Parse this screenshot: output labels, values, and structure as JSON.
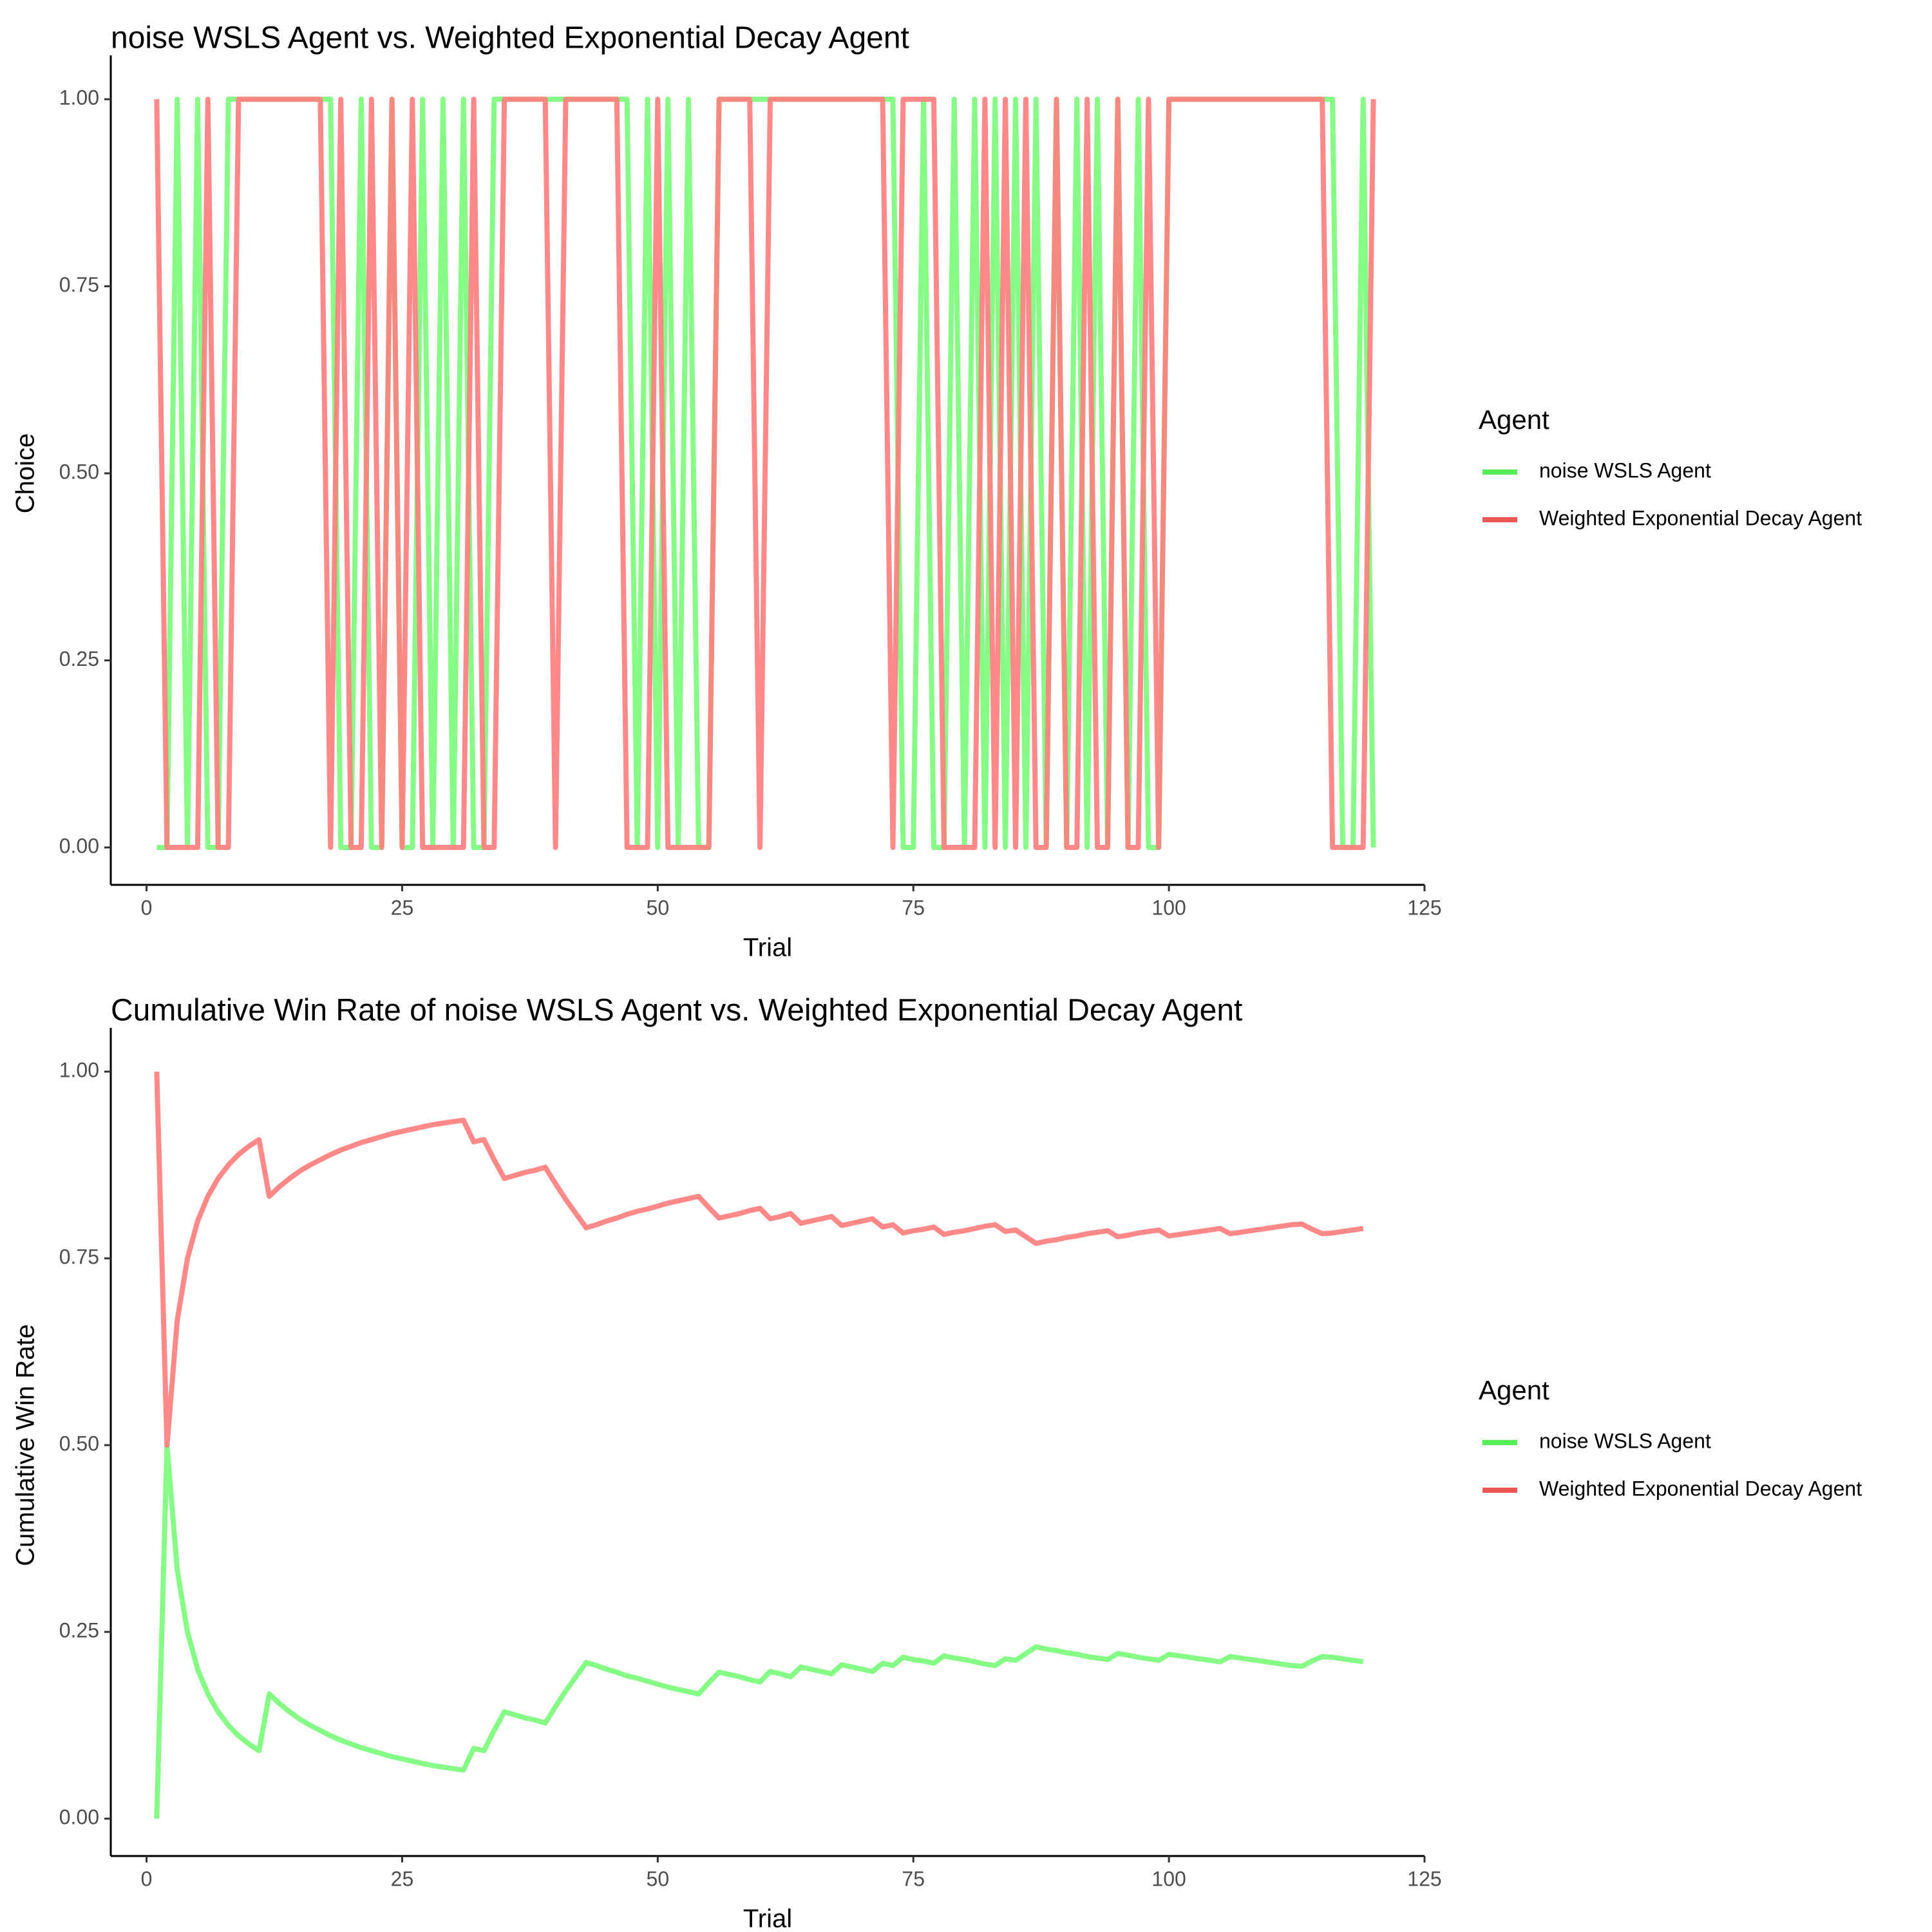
{
  "colors": {
    "wsls": "#7CFC7C",
    "decay": "#FF7F7F",
    "wsls_key": "#55EE55",
    "decay_key": "#EE5555"
  },
  "chart_data": [
    {
      "type": "line",
      "title": "noise WSLS Agent vs. Weighted Exponential Decay Agent",
      "xlabel": "Trial",
      "ylabel": "Choice",
      "xlim": [
        -3.5,
        125
      ],
      "ylim": [
        -0.05,
        1.05
      ],
      "x_ticks": [
        0,
        25,
        50,
        75,
        100,
        125
      ],
      "y_ticks": [
        0,
        0.25,
        0.5,
        0.75,
        1
      ],
      "x_tick_labels": [
        "0",
        "25",
        "50",
        "75",
        "100",
        "125"
      ],
      "y_tick_labels": [
        "0.00",
        "0.25",
        "0.50",
        "0.75",
        "1.00"
      ],
      "legend": {
        "title": "Agent",
        "position": "right"
      },
      "series": [
        {
          "name": "noise WSLS Agent",
          "color": "#7CFC7C",
          "x": [
            1,
            2,
            3,
            4,
            5,
            6,
            7,
            8,
            9,
            10,
            11,
            12,
            13,
            14,
            15,
            16,
            17,
            18,
            19,
            20,
            21,
            22,
            23,
            24,
            25,
            26,
            27,
            28,
            29,
            30,
            31,
            32,
            33,
            34,
            35,
            36,
            37,
            38,
            39,
            40,
            41,
            42,
            43,
            44,
            45,
            46,
            47,
            48,
            49,
            50,
            51,
            52,
            53,
            54,
            55,
            56,
            57,
            58,
            59,
            60,
            61,
            62,
            63,
            64,
            65,
            66,
            67,
            68,
            69,
            70,
            71,
            72,
            73,
            74,
            75,
            76,
            77,
            78,
            79,
            80,
            81,
            82,
            83,
            84,
            85,
            86,
            87,
            88,
            89,
            90,
            91,
            92,
            93,
            94,
            95,
            96,
            97,
            98,
            99,
            100,
            101,
            102,
            103,
            104,
            105,
            106,
            107,
            108,
            109,
            110,
            111,
            112,
            113,
            114,
            115,
            116,
            117,
            118,
            119,
            120
          ],
          "y": [
            0,
            0,
            1,
            0,
            1,
            0,
            0,
            1,
            1,
            1,
            1,
            1,
            1,
            1,
            1,
            1,
            1,
            1,
            0,
            0,
            1,
            0,
            0,
            1,
            0,
            0,
            1,
            0,
            1,
            0,
            1,
            0,
            0,
            1,
            1,
            1,
            1,
            1,
            1,
            1,
            1,
            1,
            1,
            1,
            1,
            1,
            1,
            0,
            1,
            0,
            1,
            0,
            1,
            0,
            0,
            1,
            1,
            1,
            1,
            1,
            1,
            1,
            1,
            1,
            1,
            1,
            1,
            1,
            1,
            1,
            1,
            1,
            1,
            0,
            0,
            1,
            0,
            0,
            1,
            0,
            1,
            0,
            1,
            0,
            1,
            0,
            1,
            0,
            1,
            0,
            1,
            0,
            1,
            0,
            1,
            0,
            1,
            0,
            0,
            1,
            1,
            1,
            1,
            1,
            1,
            1,
            1,
            1,
            1,
            1,
            1,
            1,
            1,
            1,
            1,
            1,
            0,
            0,
            1,
            0
          ]
        },
        {
          "name": "Weighted Exponential Decay Agent",
          "color": "#FF7F7F",
          "x": [
            1,
            2,
            3,
            4,
            5,
            6,
            7,
            8,
            9,
            10,
            11,
            12,
            13,
            14,
            15,
            16,
            17,
            18,
            19,
            20,
            21,
            22,
            23,
            24,
            25,
            26,
            27,
            28,
            29,
            30,
            31,
            32,
            33,
            34,
            35,
            36,
            37,
            38,
            39,
            40,
            41,
            42,
            43,
            44,
            45,
            46,
            47,
            48,
            49,
            50,
            51,
            52,
            53,
            54,
            55,
            56,
            57,
            58,
            59,
            60,
            61,
            62,
            63,
            64,
            65,
            66,
            67,
            68,
            69,
            70,
            71,
            72,
            73,
            74,
            75,
            76,
            77,
            78,
            79,
            80,
            81,
            82,
            83,
            84,
            85,
            86,
            87,
            88,
            89,
            90,
            91,
            92,
            93,
            94,
            95,
            96,
            97,
            98,
            99,
            100,
            101,
            102,
            103,
            104,
            105,
            106,
            107,
            108,
            109,
            110,
            111,
            112,
            113,
            114,
            115,
            116,
            117,
            118,
            119,
            120
          ],
          "y": [
            1,
            0,
            0,
            0,
            0,
            1,
            0,
            0,
            1,
            1,
            1,
            1,
            1,
            1,
            1,
            1,
            1,
            0,
            1,
            0,
            0,
            1,
            0,
            1,
            0,
            1,
            0,
            0,
            0,
            0,
            0,
            1,
            0,
            0,
            1,
            1,
            1,
            1,
            1,
            0,
            1,
            1,
            1,
            1,
            1,
            1,
            0,
            0,
            0,
            1,
            0,
            0,
            0,
            0,
            0,
            1,
            1,
            1,
            1,
            0,
            1,
            1,
            1,
            1,
            1,
            1,
            1,
            1,
            1,
            1,
            1,
            1,
            0,
            1,
            1,
            1,
            1,
            0,
            0,
            0,
            0,
            1,
            0,
            1,
            0,
            1,
            0,
            0,
            1,
            0,
            0,
            1,
            0,
            0,
            1,
            0,
            0,
            1,
            0,
            1,
            1,
            1,
            1,
            1,
            1,
            1,
            1,
            1,
            1,
            1,
            1,
            1,
            1,
            1,
            1,
            0,
            0,
            0,
            0,
            1
          ]
        }
      ]
    },
    {
      "type": "line",
      "title": "Cumulative Win Rate of noise WSLS Agent vs. Weighted Exponential Decay Agent",
      "xlabel": "Trial",
      "ylabel": "Cumulative Win Rate",
      "xlim": [
        -3.5,
        125
      ],
      "ylim": [
        -0.05,
        1.05
      ],
      "x_ticks": [
        0,
        25,
        50,
        75,
        100,
        125
      ],
      "y_ticks": [
        0,
        0.25,
        0.5,
        0.75,
        1
      ],
      "x_tick_labels": [
        "0",
        "25",
        "50",
        "75",
        "100",
        "125"
      ],
      "y_tick_labels": [
        "0.00",
        "0.25",
        "0.50",
        "0.75",
        "1.00"
      ],
      "legend": {
        "title": "Agent",
        "position": "right"
      },
      "series": [
        {
          "name": "noise WSLS Agent",
          "color": "#7CFC7C",
          "x": [
            1,
            2,
            3,
            4,
            5,
            6,
            7,
            8,
            9,
            10,
            11,
            12,
            13,
            14,
            15,
            16,
            17,
            18,
            19,
            20,
            21,
            22,
            23,
            24,
            25,
            26,
            27,
            28,
            29,
            30,
            31,
            32,
            33,
            34,
            35,
            36,
            37,
            38,
            39,
            40,
            41,
            42,
            43,
            44,
            45,
            46,
            47,
            48,
            49,
            50,
            51,
            52,
            53,
            54,
            55,
            56,
            57,
            58,
            59,
            60,
            61,
            62,
            63,
            64,
            65,
            66,
            67,
            68,
            69,
            70,
            71,
            72,
            73,
            74,
            75,
            76,
            77,
            78,
            79,
            80,
            81,
            82,
            83,
            84,
            85,
            86,
            87,
            88,
            89,
            90,
            91,
            92,
            93,
            94,
            95,
            96,
            97,
            98,
            99,
            100,
            101,
            102,
            103,
            104,
            105,
            106,
            107,
            108,
            109,
            110,
            111,
            112,
            113,
            114,
            115,
            116,
            117,
            118,
            119
          ],
          "y": [
            0.0,
            0.5,
            0.333,
            0.25,
            0.2,
            0.167,
            0.143,
            0.125,
            0.111,
            0.1,
            0.091,
            0.167,
            0.154,
            0.143,
            0.133,
            0.125,
            0.118,
            0.111,
            0.105,
            0.1,
            0.095,
            0.091,
            0.087,
            0.083,
            0.08,
            0.077,
            0.074,
            0.071,
            0.069,
            0.067,
            0.065,
            0.094,
            0.091,
            0.118,
            0.143,
            0.139,
            0.135,
            0.132,
            0.128,
            0.15,
            0.171,
            0.19,
            0.209,
            0.205,
            0.2,
            0.196,
            0.191,
            0.188,
            0.184,
            0.18,
            0.176,
            0.173,
            0.17,
            0.167,
            0.182,
            0.196,
            0.193,
            0.19,
            0.186,
            0.183,
            0.197,
            0.194,
            0.19,
            0.203,
            0.2,
            0.197,
            0.194,
            0.206,
            0.203,
            0.2,
            0.197,
            0.208,
            0.205,
            0.216,
            0.213,
            0.211,
            0.208,
            0.218,
            0.215,
            0.213,
            0.21,
            0.207,
            0.205,
            0.214,
            0.212,
            0.221,
            0.23,
            0.227,
            0.225,
            0.222,
            0.22,
            0.217,
            0.215,
            0.213,
            0.221,
            0.219,
            0.216,
            0.214,
            0.212,
            0.22,
            0.218,
            0.216,
            0.214,
            0.212,
            0.21,
            0.217,
            0.215,
            0.213,
            0.211,
            0.209,
            0.207,
            0.205,
            0.204,
            0.211,
            0.217,
            0.216,
            0.214,
            0.212,
            0.21
          ]
        },
        {
          "name": "Weighted Exponential Decay Agent",
          "color": "#FF7F7F",
          "x": [
            1,
            2,
            3,
            4,
            5,
            6,
            7,
            8,
            9,
            10,
            11,
            12,
            13,
            14,
            15,
            16,
            17,
            18,
            19,
            20,
            21,
            22,
            23,
            24,
            25,
            26,
            27,
            28,
            29,
            30,
            31,
            32,
            33,
            34,
            35,
            36,
            37,
            38,
            39,
            40,
            41,
            42,
            43,
            44,
            45,
            46,
            47,
            48,
            49,
            50,
            51,
            52,
            53,
            54,
            55,
            56,
            57,
            58,
            59,
            60,
            61,
            62,
            63,
            64,
            65,
            66,
            67,
            68,
            69,
            70,
            71,
            72,
            73,
            74,
            75,
            76,
            77,
            78,
            79,
            80,
            81,
            82,
            83,
            84,
            85,
            86,
            87,
            88,
            89,
            90,
            91,
            92,
            93,
            94,
            95,
            96,
            97,
            98,
            99,
            100,
            101,
            102,
            103,
            104,
            105,
            106,
            107,
            108,
            109,
            110,
            111,
            112,
            113,
            114,
            115,
            116,
            117,
            118,
            119
          ],
          "y": [
            1.0,
            0.5,
            0.667,
            0.75,
            0.8,
            0.833,
            0.857,
            0.875,
            0.889,
            0.9,
            0.909,
            0.833,
            0.846,
            0.857,
            0.867,
            0.875,
            0.882,
            0.889,
            0.895,
            0.9,
            0.905,
            0.909,
            0.913,
            0.917,
            0.92,
            0.923,
            0.926,
            0.929,
            0.931,
            0.933,
            0.935,
            0.906,
            0.909,
            0.882,
            0.857,
            0.861,
            0.865,
            0.868,
            0.872,
            0.85,
            0.829,
            0.81,
            0.791,
            0.795,
            0.8,
            0.804,
            0.809,
            0.813,
            0.816,
            0.82,
            0.824,
            0.827,
            0.83,
            0.833,
            0.818,
            0.804,
            0.807,
            0.81,
            0.814,
            0.817,
            0.803,
            0.806,
            0.81,
            0.797,
            0.8,
            0.803,
            0.806,
            0.794,
            0.797,
            0.8,
            0.803,
            0.792,
            0.795,
            0.784,
            0.787,
            0.789,
            0.792,
            0.782,
            0.785,
            0.787,
            0.79,
            0.793,
            0.795,
            0.786,
            0.788,
            0.779,
            0.77,
            0.773,
            0.775,
            0.778,
            0.78,
            0.783,
            0.785,
            0.787,
            0.779,
            0.781,
            0.784,
            0.786,
            0.788,
            0.78,
            0.782,
            0.784,
            0.786,
            0.788,
            0.79,
            0.783,
            0.785,
            0.787,
            0.789,
            0.791,
            0.793,
            0.795,
            0.796,
            0.789,
            0.783,
            0.784,
            0.786,
            0.788,
            0.79
          ]
        }
      ]
    }
  ]
}
